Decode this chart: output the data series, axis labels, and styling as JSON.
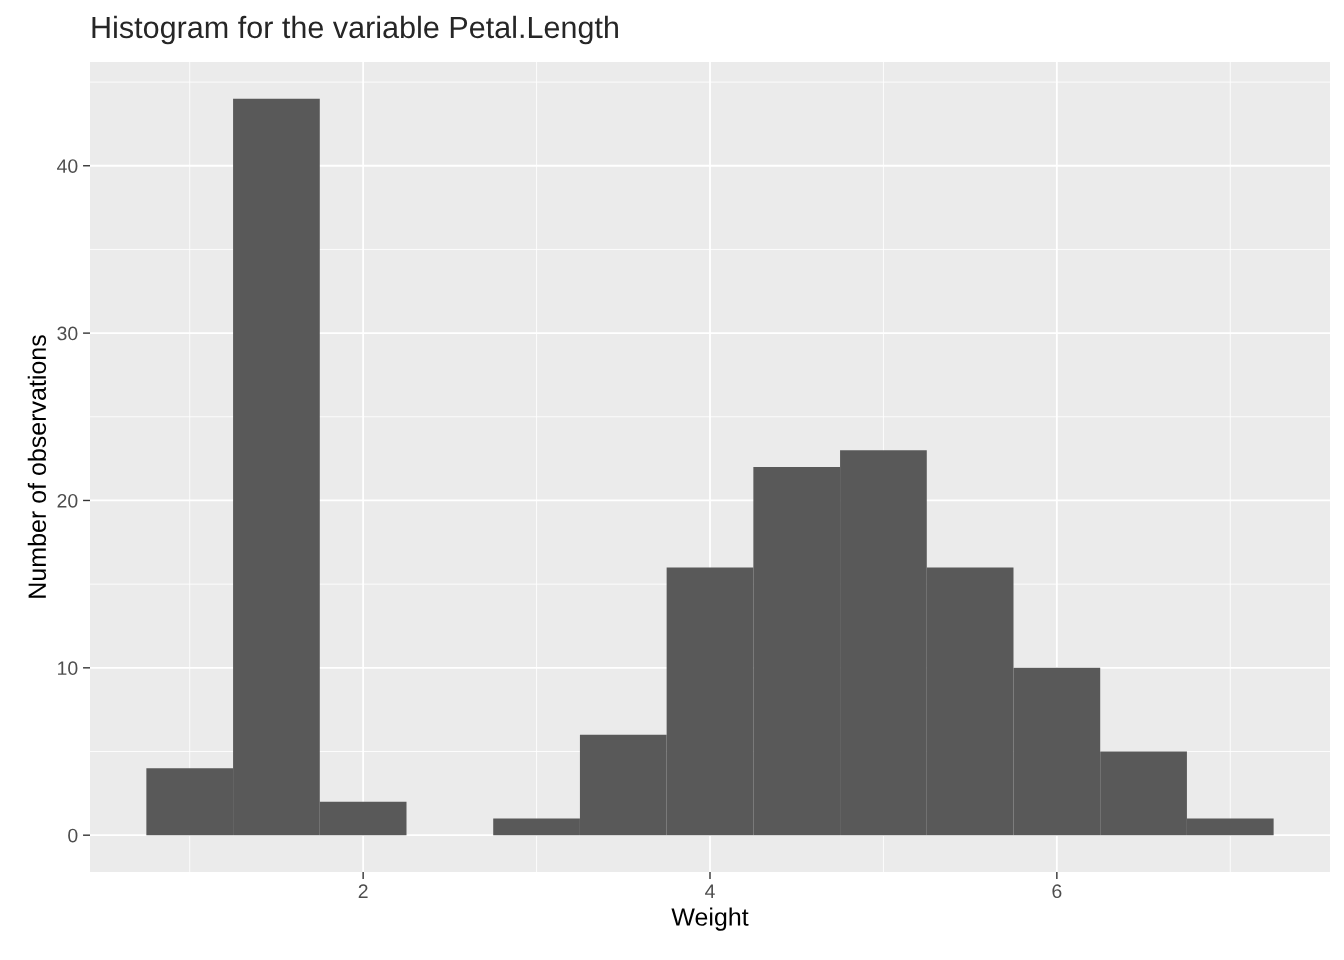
{
  "chart_data": {
    "type": "histogram",
    "title": "Histogram for the variable Petal.Length",
    "xlabel": "Weight",
    "ylabel": "Number of observations",
    "bins": [
      0.75,
      1.25,
      1.75,
      2.25,
      2.75,
      3.25,
      3.75,
      4.25,
      4.75,
      5.25,
      5.75,
      6.25,
      6.75,
      7.25
    ],
    "values": [
      4,
      44,
      2,
      0,
      1,
      6,
      16,
      22,
      23,
      16,
      10,
      5,
      1
    ],
    "color": "#595959",
    "xlim": [
      0.425,
      7.575
    ],
    "ylim": [
      -2.2,
      46.2
    ],
    "xticks": [
      2,
      4,
      6
    ],
    "yticks": [
      0,
      10,
      20,
      30,
      40
    ],
    "grid": true
  }
}
